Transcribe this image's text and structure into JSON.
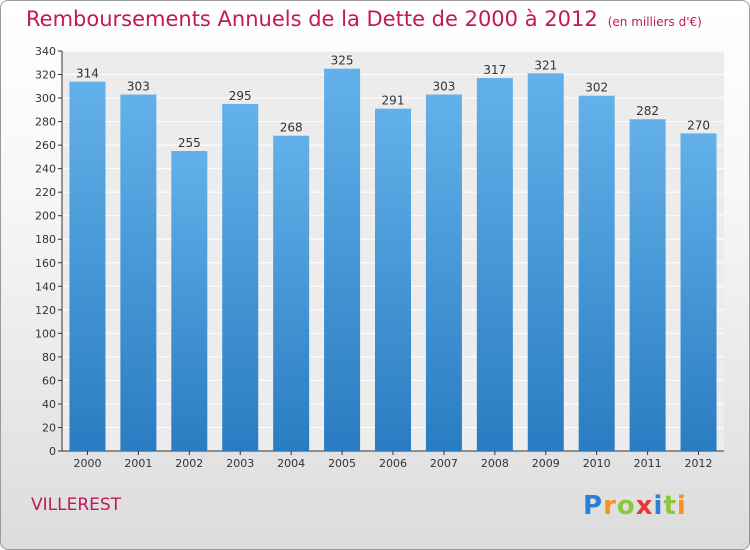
{
  "header": {
    "title": "Remboursements Annuels de la Dette de 2000 à 2012",
    "unit": "(en milliers d'€)"
  },
  "footer": {
    "commune": "VILLEREST",
    "logo_text": "Proxiti"
  },
  "colors": {
    "title": "#c2185b",
    "bar_top": "#63b1ea",
    "bar_bottom": "#2a7cc2",
    "logo": [
      "#2e7fd0",
      "#f7941d",
      "#8cc63f",
      "#e53935",
      "#2e7fd0",
      "#8cc63f",
      "#f7941d"
    ]
  },
  "chart_data": {
    "type": "bar",
    "title": "Remboursements Annuels de la Dette de 2000 à 2012",
    "xlabel": "",
    "ylabel": "",
    "categories": [
      "2000",
      "2001",
      "2002",
      "2003",
      "2004",
      "2005",
      "2006",
      "2007",
      "2008",
      "2009",
      "2010",
      "2011",
      "2012"
    ],
    "values": [
      314,
      303,
      255,
      295,
      268,
      325,
      291,
      303,
      317,
      321,
      302,
      282,
      270
    ],
    "ylim": [
      0,
      340
    ],
    "ytick_step": 20,
    "grid": true,
    "data_labels": true
  }
}
